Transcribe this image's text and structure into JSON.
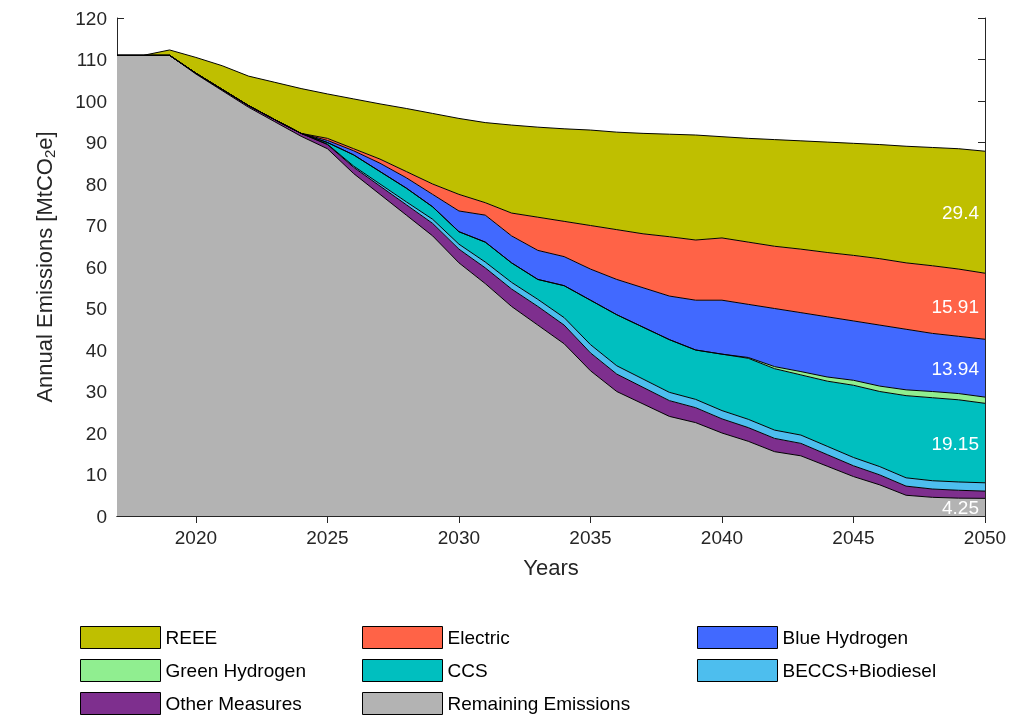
{
  "chart_data": {
    "type": "area",
    "xlabel": "Years",
    "ylabel": "Annual Emissions [MtCO$_{2}$e]",
    "x": [
      2017,
      2018,
      2019,
      2020,
      2021,
      2022,
      2023,
      2024,
      2025,
      2026,
      2027,
      2028,
      2029,
      2030,
      2031,
      2032,
      2033,
      2034,
      2035,
      2036,
      2037,
      2038,
      2039,
      2040,
      2041,
      2042,
      2043,
      2044,
      2045,
      2046,
      2047,
      2048,
      2049,
      2050
    ],
    "stacked": true,
    "xlim": [
      2017,
      2050
    ],
    "xticks": [
      2020,
      2025,
      2030,
      2035,
      2040,
      2045,
      2050
    ],
    "ylim": [
      0,
      120
    ],
    "yticks": [
      0,
      10,
      20,
      30,
      40,
      50,
      60,
      70,
      80,
      90,
      100,
      110,
      120
    ],
    "grid": false,
    "legend": "bottom",
    "marker": "none",
    "series": [
      {
        "name": "Remaining Emissions",
        "color": "#b3b3b3",
        "values": [
          111,
          111,
          111,
          106.5,
          102.5,
          98.5,
          95,
          91.5,
          88.5,
          82.5,
          77.5,
          72.5,
          67.5,
          61,
          56,
          50.5,
          46,
          41.5,
          35,
          30,
          27,
          24,
          22.5,
          20,
          18,
          15.5,
          14.5,
          12,
          9.5,
          7.5,
          5,
          4.5,
          4.3,
          4.25
        ],
        "value_labels": [
          null,
          null,
          null,
          null,
          null,
          null,
          null,
          null,
          null,
          null,
          null,
          null,
          null,
          null,
          null,
          null,
          null,
          null,
          null,
          null,
          null,
          null,
          null,
          null,
          null,
          null,
          null,
          null,
          null,
          null,
          null,
          null,
          null,
          "4.25"
        ]
      },
      {
        "name": "Other Measures",
        "color": "#7e2f8e",
        "values": [
          0,
          0,
          0,
          0.2,
          0.3,
          0.4,
          0.5,
          0.7,
          1,
          1.5,
          2,
          2.5,
          3,
          3.3,
          3.8,
          4.2,
          4.5,
          4.5,
          4.3,
          4.2,
          4,
          3.8,
          3.6,
          3.4,
          3.3,
          3.2,
          3,
          2.8,
          2.6,
          2.4,
          2.2,
          2,
          1.9,
          1.75
        ]
      },
      {
        "name": "BECCS+Biodiesel",
        "color": "#4dbeee",
        "values": [
          0,
          0,
          0,
          0,
          0,
          0,
          0,
          0,
          0.1,
          0.3,
          0.5,
          0.7,
          1,
          1.2,
          1.4,
          1.6,
          1.7,
          1.8,
          2,
          2,
          2,
          2,
          2,
          2,
          2,
          2,
          2,
          2,
          2,
          2,
          2,
          2,
          2,
          2
        ]
      },
      {
        "name": "CCS",
        "color": "#00bfbf",
        "values": [
          0,
          0,
          0,
          0,
          0,
          0,
          0,
          0,
          0.4,
          2.7,
          3,
          3.3,
          3,
          3,
          4.8,
          4.7,
          4.8,
          7.7,
          10.7,
          12.3,
          12.5,
          12.7,
          11.9,
          13.6,
          14.7,
          14.8,
          14.5,
          15.7,
          17.4,
          18.1,
          19.8,
          20,
          19.8,
          19.15
        ],
        "value_labels": [
          null,
          null,
          null,
          null,
          null,
          null,
          null,
          null,
          null,
          null,
          null,
          null,
          null,
          null,
          null,
          null,
          null,
          null,
          null,
          null,
          null,
          null,
          null,
          null,
          null,
          null,
          null,
          null,
          null,
          null,
          null,
          null,
          null,
          "19.15"
        ]
      },
      {
        "name": "Green Hydrogen",
        "color": "#90ee90",
        "values": [
          0,
          0,
          0,
          0,
          0,
          0,
          0,
          0,
          0,
          0,
          0,
          0,
          0,
          0,
          0,
          0,
          0,
          0,
          0,
          0,
          0,
          0,
          0,
          0,
          0.2,
          0.5,
          0.8,
          1,
          1.2,
          1.3,
          1.4,
          1.5,
          1.5,
          1.5
        ]
      },
      {
        "name": "Blue Hydrogen",
        "color": "#4169ff",
        "values": [
          0,
          0,
          0,
          0,
          0,
          0,
          0,
          0,
          0.5,
          1,
          2,
          2.5,
          3,
          5,
          6.5,
          6.5,
          7,
          7,
          7.5,
          8.5,
          9.5,
          10.5,
          12,
          13,
          12.8,
          14,
          14.2,
          14.5,
          14.3,
          14.7,
          14.6,
          14,
          13.8,
          13.94
        ],
        "value_labels": [
          null,
          null,
          null,
          null,
          null,
          null,
          null,
          null,
          null,
          null,
          null,
          null,
          null,
          null,
          null,
          null,
          null,
          null,
          null,
          null,
          null,
          null,
          null,
          null,
          null,
          null,
          null,
          null,
          null,
          null,
          null,
          null,
          null,
          "13.94"
        ]
      },
      {
        "name": "Electric",
        "color": "#ff6347",
        "values": [
          0,
          0,
          0,
          0,
          0,
          0,
          0,
          0,
          0.5,
          0.5,
          1,
          1.5,
          2.5,
          4,
          3,
          5.5,
          8,
          8.5,
          10.5,
          12,
          13,
          14.3,
          14.5,
          15,
          15,
          15,
          15.3,
          15.5,
          15.8,
          16,
          16,
          16.3,
          16.2,
          15.91
        ],
        "value_labels": [
          null,
          null,
          null,
          null,
          null,
          null,
          null,
          null,
          null,
          null,
          null,
          null,
          null,
          null,
          null,
          null,
          null,
          null,
          null,
          null,
          null,
          null,
          null,
          null,
          null,
          null,
          null,
          null,
          null,
          null,
          null,
          null,
          null,
          "15.91"
        ]
      },
      {
        "name": "REEE",
        "color": "#bfbf00",
        "values": [
          0,
          0,
          1.3,
          3.8,
          5.7,
          7.1,
          9,
          10.8,
          10.7,
          12,
          13.3,
          15.2,
          17,
          18.3,
          19.3,
          21.2,
          21.7,
          22.3,
          23,
          23.5,
          24.2,
          24.7,
          25.3,
          24.4,
          25,
          25.7,
          26.1,
          26.6,
          27,
          27.5,
          28.1,
          28.5,
          29,
          29.4
        ],
        "value_labels": [
          null,
          null,
          null,
          null,
          null,
          null,
          null,
          null,
          null,
          null,
          null,
          null,
          null,
          null,
          null,
          null,
          null,
          null,
          null,
          null,
          null,
          null,
          null,
          null,
          null,
          null,
          null,
          null,
          null,
          null,
          null,
          null,
          null,
          "29.4"
        ]
      }
    ]
  }
}
